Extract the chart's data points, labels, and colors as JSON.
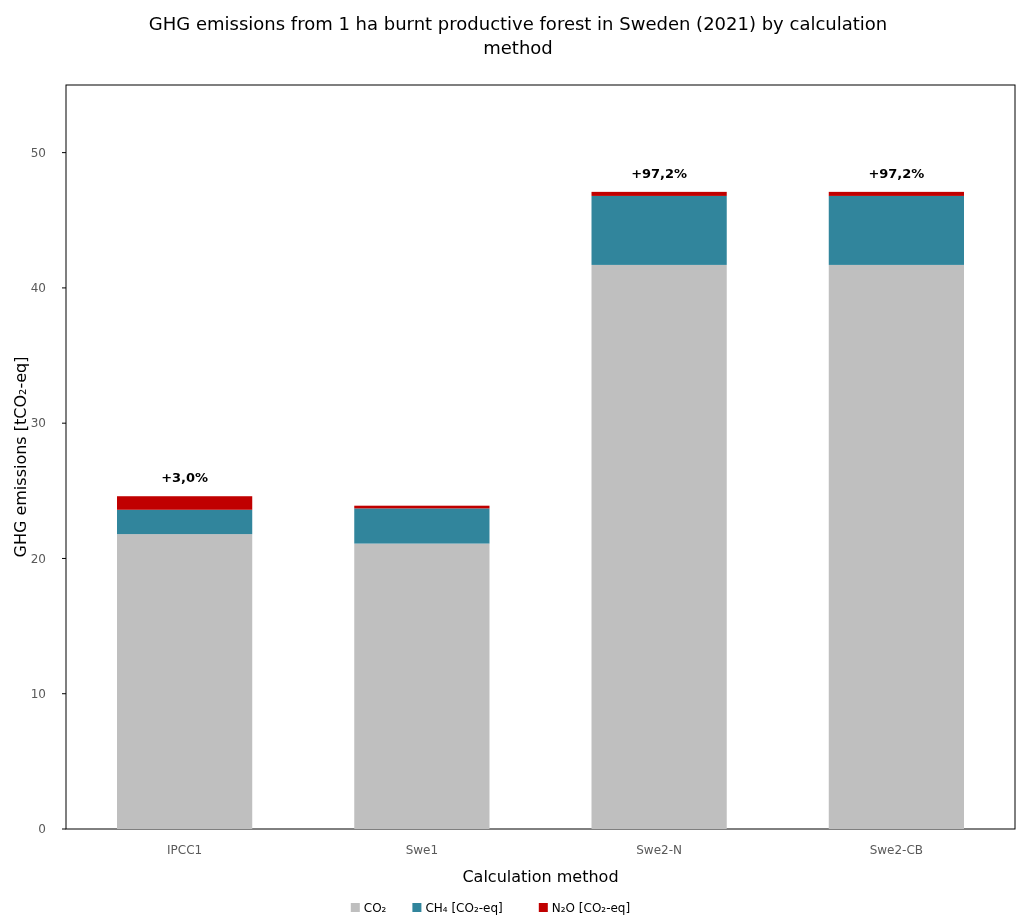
{
  "chart_data": {
    "type": "bar",
    "stacked": true,
    "title": "GHG emissions from 1 ha burnt productive forest in Sweden (2021) by calculation method",
    "xlabel": "Calculation method",
    "ylabel": "GHG emissions [tCO₂-eq]",
    "categories": [
      "IPCC1",
      "Swe1",
      "Swe2-N",
      "Swe2-CB"
    ],
    "series": [
      {
        "name": "CO₂",
        "color": "#bfbfbf",
        "values": [
          21.8,
          21.1,
          41.7,
          41.7
        ]
      },
      {
        "name": "CH₄ [CO₂-eq]",
        "color": "#31859c",
        "values": [
          1.8,
          2.6,
          5.1,
          5.1
        ]
      },
      {
        "name": "N₂O [CO₂-eq]",
        "color": "#c00000",
        "values": [
          1.0,
          0.2,
          0.3,
          0.3
        ]
      }
    ],
    "annotations": [
      {
        "text": "+3,0%",
        "x": "IPCC1",
        "y": 24.6
      },
      {
        "text": "+97,2%",
        "x": "Swe2-N",
        "y": 47.1
      },
      {
        "text": "+97,2%",
        "x": "Swe2-CB",
        "y": 47.1
      }
    ],
    "ylim": [
      0,
      55
    ],
    "yticks": [
      0,
      10,
      20,
      30,
      40,
      50
    ],
    "grid": false,
    "legend": "bottom"
  }
}
